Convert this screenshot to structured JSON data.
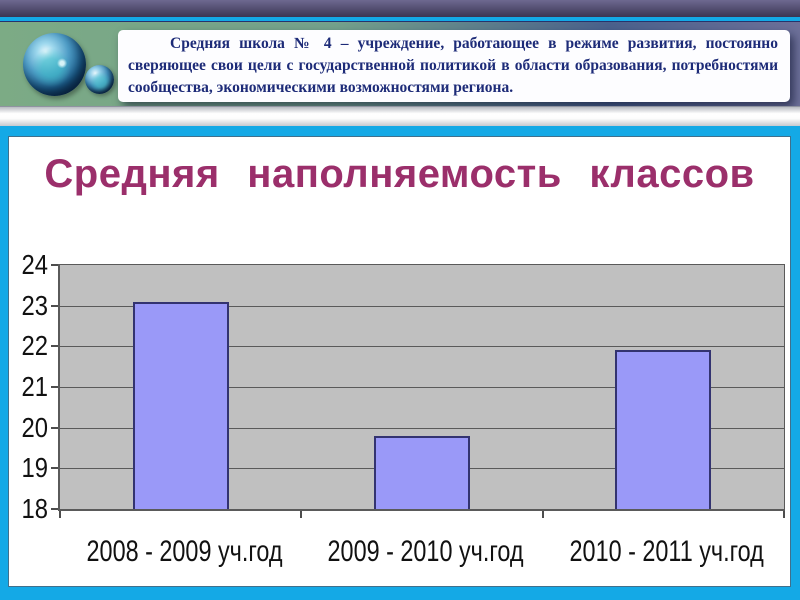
{
  "slide": {
    "header": {
      "paragraph": "Средняя школа № 4 – учреждение, работающее в режиме развития, постоянно сверяющее свои цели с государственной политикой в области образования, потребностями сообщества, экономическими возможностями региона.",
      "decoration_icons": [
        "glossy-sphere-icon-large",
        "glossy-sphere-icon-small"
      ]
    }
  },
  "chart_data": {
    "type": "bar",
    "title": "Средняя наполняемость классов",
    "categories": [
      "2008 - 2009 уч.год",
      "2009 - 2010 уч.год",
      "2010 - 2011 уч.год"
    ],
    "values": [
      23.1,
      19.8,
      21.9
    ],
    "ylim": [
      18,
      24
    ],
    "yticks": [
      18,
      19,
      20,
      21,
      22,
      23,
      24
    ],
    "grid": true,
    "legend": false,
    "xlabel": "",
    "ylabel": "",
    "style": {
      "bar_fill": "#9a99f8",
      "bar_border": "#333370",
      "plot_background": "#c0c0c0",
      "gridline_color": "#5a5a5a",
      "title_color": "#9b2f6b",
      "axis_label_color": "#111111"
    }
  },
  "theme": {
    "accent_cyan": "#14a9e6",
    "top_bar_dark": "#3a3553",
    "band_green": "#7cab85",
    "band_slate": "#6d7099",
    "header_text_color": "#1d2b78"
  }
}
